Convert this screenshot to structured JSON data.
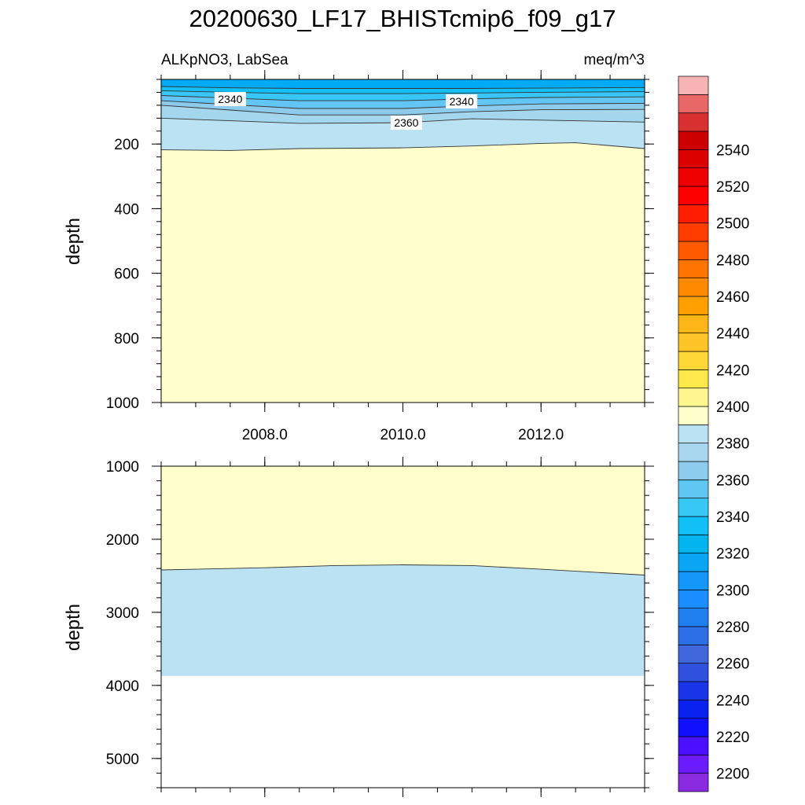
{
  "chart_data": {
    "type": "heatmap",
    "title": "20200630_LF17_BHISTcmip6_f09_g17",
    "left_subtitle": "ALKpNO3, LabSea",
    "right_subtitle": "meq/m^3",
    "xlim": [
      2006.5,
      2013.5
    ],
    "x_ticks": [
      {
        "value": 2008,
        "label": "2008.0"
      },
      {
        "value": 2010,
        "label": "2010.0"
      },
      {
        "value": 2012,
        "label": "2012.0"
      }
    ],
    "panels": [
      {
        "ylabel": "depth",
        "ylim": [
          0,
          1000
        ],
        "y_ticks": [
          {
            "value": 200,
            "label": "200"
          },
          {
            "value": 400,
            "label": "400"
          },
          {
            "value": 600,
            "label": "600"
          },
          {
            "value": 800,
            "label": "800"
          },
          {
            "value": 1000,
            "label": "1000"
          }
        ],
        "contours": [
          {
            "level": 2330,
            "points": [
              [
                2006.5,
                22
              ],
              [
                2007.5,
                26
              ],
              [
                2008.5,
                28
              ],
              [
                2010,
                28
              ],
              [
                2011,
                28
              ],
              [
                2012,
                27
              ],
              [
                2013.5,
                25
              ]
            ]
          },
          {
            "level": 2335,
            "points": [
              [
                2006.5,
                35
              ],
              [
                2007.5,
                40
              ],
              [
                2008.5,
                44
              ],
              [
                2010,
                44
              ],
              [
                2011,
                42
              ],
              [
                2012,
                40
              ],
              [
                2013.5,
                38
              ]
            ]
          },
          {
            "level": 2340,
            "points": [
              [
                2006.5,
                50
              ],
              [
                2007.5,
                58
              ],
              [
                2008.5,
                66
              ],
              [
                2010,
                66
              ],
              [
                2011,
                60
              ],
              [
                2012,
                56
              ],
              [
                2013.5,
                54
              ]
            ]
          },
          {
            "level": 2345,
            "points": [
              [
                2006.5,
                66
              ],
              [
                2007.5,
                78
              ],
              [
                2008.5,
                90
              ],
              [
                2010,
                90
              ],
              [
                2011,
                82
              ],
              [
                2012,
                76
              ],
              [
                2013.5,
                74
              ]
            ]
          },
          {
            "level": 2350,
            "points": [
              [
                2006.5,
                80
              ],
              [
                2007.5,
                95
              ],
              [
                2008.5,
                110
              ],
              [
                2010,
                110
              ],
              [
                2011,
                100
              ],
              [
                2012,
                94
              ],
              [
                2013.5,
                93
              ]
            ]
          },
          {
            "level": 2360,
            "points": [
              [
                2006.5,
                120
              ],
              [
                2007.5,
                128
              ],
              [
                2008.5,
                136
              ],
              [
                2010,
                134
              ],
              [
                2011,
                122
              ],
              [
                2012,
                126
              ],
              [
                2013.5,
                132
              ]
            ]
          },
          {
            "level": 2370,
            "points": [
              [
                2006.5,
                218
              ],
              [
                2007.5,
                220
              ],
              [
                2008.5,
                214
              ],
              [
                2010,
                212
              ],
              [
                2011,
                206
              ],
              [
                2012,
                198
              ],
              [
                2012.5,
                196
              ],
              [
                2013.5,
                214
              ]
            ]
          }
        ],
        "contour_labels": [
          {
            "text": "2340",
            "x": 2007.5,
            "y": 61
          },
          {
            "text": "2340",
            "x": 2010.85,
            "y": 68
          },
          {
            "text": "2360",
            "x": 2010.05,
            "y": 134
          }
        ]
      },
      {
        "ylabel": "depth",
        "ylim": [
          1000,
          5400
        ],
        "y_ticks": [
          {
            "value": 1000,
            "label": "1000"
          },
          {
            "value": 2000,
            "label": "2000"
          },
          {
            "value": 3000,
            "label": "3000"
          },
          {
            "value": 4000,
            "label": "4000"
          },
          {
            "value": 5000,
            "label": "5000"
          }
        ],
        "contours": [
          {
            "level": 2370,
            "points": [
              [
                2006.5,
                2420
              ],
              [
                2008,
                2390
              ],
              [
                2009,
                2360
              ],
              [
                2010,
                2350
              ],
              [
                2011,
                2360
              ],
              [
                2012,
                2410
              ],
              [
                2013.5,
                2490
              ]
            ]
          }
        ],
        "ocean_floor_depth": 3870,
        "contour_labels": []
      }
    ],
    "colorbar": {
      "levels": [
        2190,
        2195,
        2200,
        2205,
        2210,
        2215,
        2220,
        2225,
        2230,
        2235,
        2240,
        2245,
        2250,
        2255,
        2260,
        2265,
        2270,
        2275,
        2280,
        2285,
        2290,
        2295,
        2300,
        2305,
        2310,
        2315,
        2320,
        2325,
        2330,
        2335,
        2340,
        2345,
        2350,
        2355,
        2360,
        2365,
        2370,
        2375,
        2380,
        2385,
        2390,
        2395,
        2400,
        2405,
        2410,
        2415,
        2420,
        2425,
        2430,
        2435,
        2440,
        2445,
        2450,
        2455,
        2460,
        2465,
        2470,
        2475,
        2480,
        2485,
        2490,
        2495,
        2500,
        2505,
        2510,
        2515,
        2520,
        2525,
        2530,
        2535,
        2540,
        2545,
        2550,
        2555,
        2560
      ],
      "boundaries": [
        2200,
        2210,
        2220,
        2230,
        2240,
        2250,
        2260,
        2270,
        2280,
        2290,
        2300,
        2310,
        2320,
        2330,
        2340,
        2350,
        2360,
        2370,
        2380,
        2390,
        2400,
        2410,
        2420,
        2430,
        2440,
        2450,
        2460,
        2470,
        2480,
        2490,
        2500,
        2510,
        2520,
        2530,
        2540,
        2550
      ],
      "labels": [
        "2200",
        "2220",
        "2240",
        "2260",
        "2280",
        "2300",
        "2320",
        "2340",
        "2360",
        "2380",
        "2400",
        "2420",
        "2440",
        "2460",
        "2480",
        "2500",
        "2520",
        "2540"
      ],
      "colors": [
        "#8a2be2",
        "#6a1bff",
        "#4a10ff",
        "#1010ff",
        "#0a22f0",
        "#1a35e8",
        "#3050e0",
        "#4068dc",
        "#2c6fe6",
        "#2080f0",
        "#1a8eff",
        "#1398fa",
        "#0aa6f5",
        "#00b4f0",
        "#12c0f8",
        "#38c8f6",
        "#60c6f2",
        "#8ccbec",
        "#a8d6ee",
        "#bbe2f2",
        "#ffffcc",
        "#fff690",
        "#ffe84a",
        "#ffd838",
        "#ffc428",
        "#ffb616",
        "#ffa000",
        "#ff8a00",
        "#ff7400",
        "#ff5a00",
        "#ff3c00",
        "#ff1e00",
        "#ff0000",
        "#ee0000",
        "#dd0000",
        "#cc0000",
        "#d83030",
        "#e86868",
        "#f8b4b4"
      ]
    }
  },
  "colors": {
    "fill_deep": "#ffffcc",
    "fill_2360": "#bae2f2",
    "fill_2350": "#a4d6ee",
    "fill_2345": "#8ccbec",
    "fill_2340": "#62c5f4",
    "fill_2335": "#38c6f8",
    "fill_2330": "#12bff8",
    "fill_surface": "#00aaf5"
  }
}
